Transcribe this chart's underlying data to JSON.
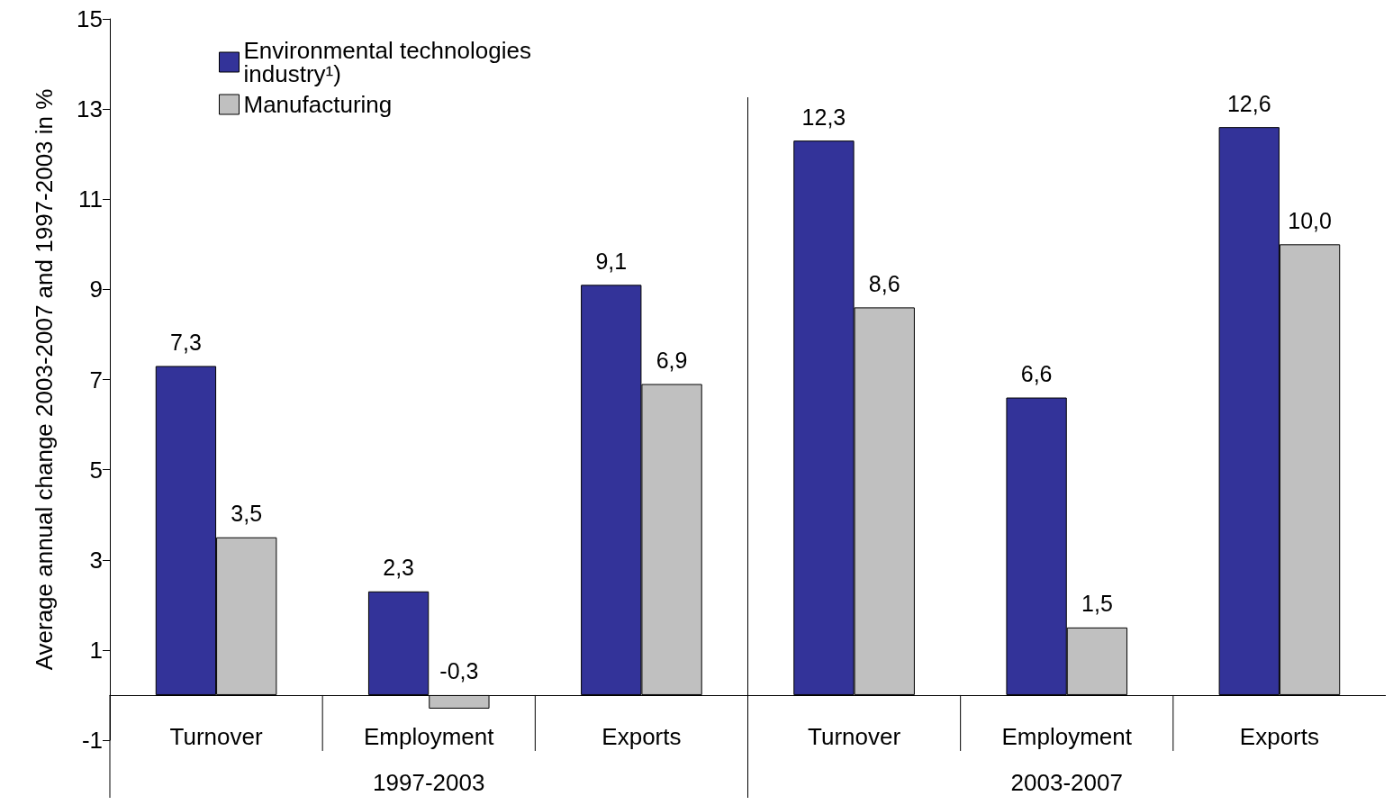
{
  "chart_data": {
    "type": "bar",
    "ylabel": "Average annual change 2003-2007 and 1997-2003 in %",
    "categories": [
      "Turnover",
      "Employment",
      "Exports",
      "Turnover",
      "Employment",
      "Exports"
    ],
    "series": [
      {
        "name": "Environmental technologies industry¹)",
        "color": "#333399",
        "values": [
          7.3,
          2.3,
          9.1,
          12.3,
          6.6,
          12.6
        ],
        "value_labels": [
          "7,3",
          "2,3",
          "9,1",
          "12,3",
          "6,6",
          "12,6"
        ]
      },
      {
        "name": "Manufacturing",
        "color": "#c0c0c0",
        "values": [
          3.5,
          -0.3,
          6.9,
          8.6,
          1.5,
          10.0
        ],
        "value_labels": [
          "3,5",
          "-0,3",
          "6,9",
          "8,6",
          "1,5",
          "10,0"
        ]
      }
    ],
    "annotations": [
      "1997-2003",
      "2003-2007"
    ],
    "ylim": [
      -1,
      15
    ],
    "yticks": [
      -1,
      1,
      3,
      5,
      7,
      9,
      11,
      13,
      15
    ],
    "grid": false,
    "legend": "top left"
  }
}
